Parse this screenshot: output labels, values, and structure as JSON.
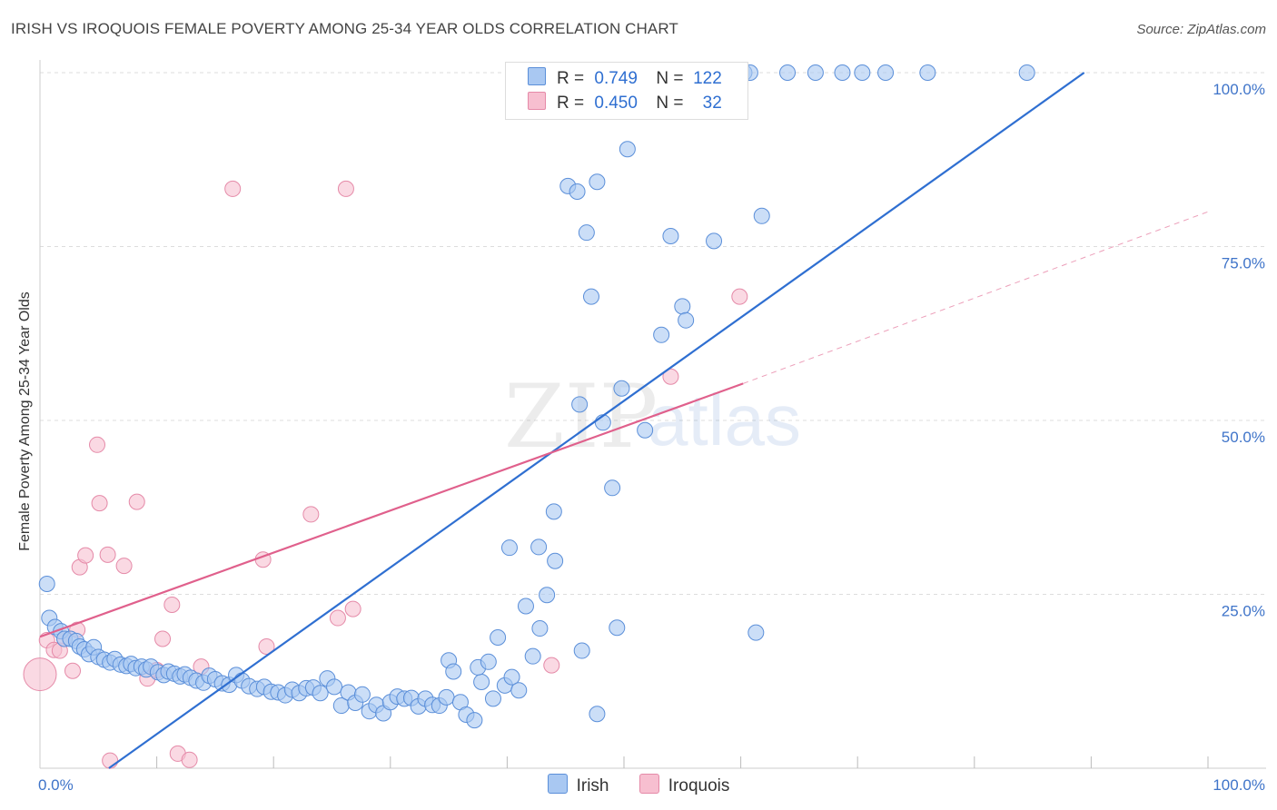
{
  "title": "IRISH VS IROQUOIS FEMALE POVERTY AMONG 25-34 YEAR OLDS CORRELATION CHART",
  "source": "Source: ZipAtlas.com",
  "watermark": {
    "zip": "ZIP",
    "atlas": "atlas"
  },
  "colors": {
    "irish_fill": "#a9c8f2",
    "irish_stroke": "#5b8fd9",
    "irish_line": "#2f6fd1",
    "iroquois_fill": "#f7bfd0",
    "iroquois_stroke": "#e58aa8",
    "iroquois_line": "#e0608c",
    "tick": "#3f74c9",
    "grid": "#dddddd"
  },
  "legend": {
    "irish": {
      "r_label": "R =",
      "r_value": "0.749",
      "n_label": "N =",
      "n_value": "122"
    },
    "iroquois": {
      "r_label": "R =",
      "r_value": "0.450",
      "n_label": "N =",
      "n_value": "32"
    }
  },
  "bottom_legend": {
    "irish": "Irish",
    "iroquois": "Iroquois"
  },
  "chart_data": {
    "type": "scatter",
    "title": "IRISH VS IROQUOIS FEMALE POVERTY AMONG 25-34 YEAR OLDS CORRELATION CHART",
    "xlabel": "",
    "ylabel": "Female Poverty Among 25-34 Year Olds",
    "xlim": [
      0,
      100
    ],
    "ylim": [
      0,
      100
    ],
    "x_tick_labels": [
      "0.0%",
      "100.0%"
    ],
    "y_tick_labels": [
      "25.0%",
      "50.0%",
      "75.0%",
      "100.0%"
    ],
    "y_ticks": [
      25,
      50,
      75,
      100
    ],
    "grid": true,
    "legend_placement": "top-center",
    "series": [
      {
        "name": "Irish",
        "r": 0.749,
        "n": 122,
        "trend": {
          "x": [
            5.9,
            89.4
          ],
          "y": [
            0.0,
            100.0
          ]
        },
        "points": [
          [
            0.6,
            26.5
          ],
          [
            0.8,
            21.6
          ],
          [
            1.3,
            20.3
          ],
          [
            1.8,
            19.7
          ],
          [
            2.1,
            18.6
          ],
          [
            2.6,
            18.6
          ],
          [
            3.1,
            18.3
          ],
          [
            3.4,
            17.5
          ],
          [
            3.8,
            17.1
          ],
          [
            4.2,
            16.4
          ],
          [
            4.6,
            17.4
          ],
          [
            5.0,
            16.0
          ],
          [
            5.5,
            15.6
          ],
          [
            6.0,
            15.2
          ],
          [
            6.4,
            15.7
          ],
          [
            6.9,
            14.9
          ],
          [
            7.4,
            14.7
          ],
          [
            7.8,
            15.0
          ],
          [
            8.2,
            14.4
          ],
          [
            8.7,
            14.6
          ],
          [
            9.1,
            14.2
          ],
          [
            9.5,
            14.6
          ],
          [
            10.1,
            13.8
          ],
          [
            10.6,
            13.4
          ],
          [
            11.0,
            13.9
          ],
          [
            11.5,
            13.6
          ],
          [
            12.0,
            13.2
          ],
          [
            12.4,
            13.5
          ],
          [
            12.9,
            13.0
          ],
          [
            13.4,
            12.6
          ],
          [
            14.0,
            12.3
          ],
          [
            14.5,
            13.3
          ],
          [
            15.0,
            12.8
          ],
          [
            15.6,
            12.2
          ],
          [
            16.2,
            12.0
          ],
          [
            16.8,
            13.4
          ],
          [
            17.3,
            12.6
          ],
          [
            17.9,
            11.8
          ],
          [
            18.6,
            11.4
          ],
          [
            19.2,
            11.7
          ],
          [
            19.8,
            11.0
          ],
          [
            20.4,
            10.9
          ],
          [
            21.0,
            10.5
          ],
          [
            21.6,
            11.3
          ],
          [
            22.2,
            10.8
          ],
          [
            22.8,
            11.5
          ],
          [
            23.4,
            11.6
          ],
          [
            24.0,
            10.8
          ],
          [
            24.6,
            12.9
          ],
          [
            25.2,
            11.7
          ],
          [
            25.8,
            9.0
          ],
          [
            26.4,
            10.9
          ],
          [
            27.0,
            9.4
          ],
          [
            27.6,
            10.6
          ],
          [
            28.2,
            8.2
          ],
          [
            28.8,
            9.1
          ],
          [
            29.4,
            7.9
          ],
          [
            30.0,
            9.5
          ],
          [
            30.6,
            10.3
          ],
          [
            31.2,
            10.0
          ],
          [
            31.8,
            10.1
          ],
          [
            32.4,
            8.9
          ],
          [
            33.0,
            10.0
          ],
          [
            33.6,
            9.1
          ],
          [
            34.2,
            9.0
          ],
          [
            34.8,
            10.2
          ],
          [
            35.0,
            15.5
          ],
          [
            35.4,
            13.9
          ],
          [
            36.0,
            9.5
          ],
          [
            36.5,
            7.7
          ],
          [
            37.2,
            6.9
          ],
          [
            37.8,
            12.4
          ],
          [
            37.5,
            14.5
          ],
          [
            38.4,
            15.3
          ],
          [
            38.8,
            10.0
          ],
          [
            39.2,
            18.8
          ],
          [
            39.8,
            11.9
          ],
          [
            40.4,
            13.1
          ],
          [
            41.0,
            11.2
          ],
          [
            40.2,
            31.7
          ],
          [
            41.6,
            23.3
          ],
          [
            42.2,
            16.1
          ],
          [
            42.8,
            20.1
          ],
          [
            42.7,
            31.8
          ],
          [
            43.4,
            24.9
          ],
          [
            44.1,
            29.8
          ],
          [
            44.0,
            36.9
          ],
          [
            46.4,
            16.9
          ],
          [
            46.2,
            52.3
          ],
          [
            47.7,
            7.8
          ],
          [
            47.2,
            67.8
          ],
          [
            48.2,
            49.7
          ],
          [
            49.4,
            20.2
          ],
          [
            49.0,
            40.3
          ],
          [
            49.8,
            54.6
          ],
          [
            50.3,
            89.0
          ],
          [
            51.8,
            48.6
          ],
          [
            53.2,
            62.3
          ],
          [
            54.0,
            76.5
          ],
          [
            55.0,
            66.4
          ],
          [
            55.3,
            64.4
          ],
          [
            57.7,
            75.8
          ],
          [
            61.3,
            19.5
          ],
          [
            61.8,
            79.4
          ],
          [
            45.2,
            83.7
          ],
          [
            46.0,
            82.9
          ],
          [
            46.8,
            77.0
          ],
          [
            47.7,
            84.3
          ],
          [
            51.4,
            100.0
          ],
          [
            54.5,
            100.0
          ],
          [
            57.2,
            100.0
          ],
          [
            60.3,
            100.0
          ],
          [
            60.8,
            100.0
          ],
          [
            64.0,
            100.0
          ],
          [
            66.4,
            100.0
          ],
          [
            68.7,
            100.0
          ],
          [
            70.4,
            100.0
          ],
          [
            72.4,
            100.0
          ],
          [
            76.0,
            100.0
          ],
          [
            84.5,
            100.0
          ],
          [
            43.3,
            100.0
          ],
          [
            50.2,
            100.0
          ]
        ]
      },
      {
        "name": "Iroquois",
        "r": 0.45,
        "n": 32,
        "trend": {
          "x": [
            0.0,
            60.2
          ],
          "y": [
            18.9,
            55.3
          ]
        },
        "trend_dashed": {
          "x": [
            60.2,
            100.0
          ],
          "y": [
            55.3,
            80.0
          ]
        },
        "points": [
          [
            0.0,
            13.5
          ],
          [
            0.6,
            18.4
          ],
          [
            1.2,
            17.0
          ],
          [
            1.7,
            16.9
          ],
          [
            2.1,
            18.6
          ],
          [
            2.8,
            14.0
          ],
          [
            3.2,
            19.9
          ],
          [
            3.4,
            28.9
          ],
          [
            3.9,
            30.6
          ],
          [
            4.9,
            46.5
          ],
          [
            5.1,
            38.1
          ],
          [
            5.8,
            30.7
          ],
          [
            6.0,
            1.1
          ],
          [
            7.2,
            29.1
          ],
          [
            8.3,
            38.3
          ],
          [
            9.2,
            12.9
          ],
          [
            10.0,
            14.1
          ],
          [
            10.5,
            18.6
          ],
          [
            11.3,
            23.5
          ],
          [
            11.8,
            2.1
          ],
          [
            12.8,
            1.2
          ],
          [
            13.8,
            14.6
          ],
          [
            16.5,
            83.3
          ],
          [
            19.1,
            30.0
          ],
          [
            19.4,
            17.5
          ],
          [
            23.2,
            36.5
          ],
          [
            25.5,
            21.6
          ],
          [
            26.2,
            83.3
          ],
          [
            26.8,
            22.9
          ],
          [
            43.8,
            14.8
          ],
          [
            54.0,
            56.3
          ],
          [
            59.9,
            67.8
          ]
        ]
      }
    ]
  }
}
